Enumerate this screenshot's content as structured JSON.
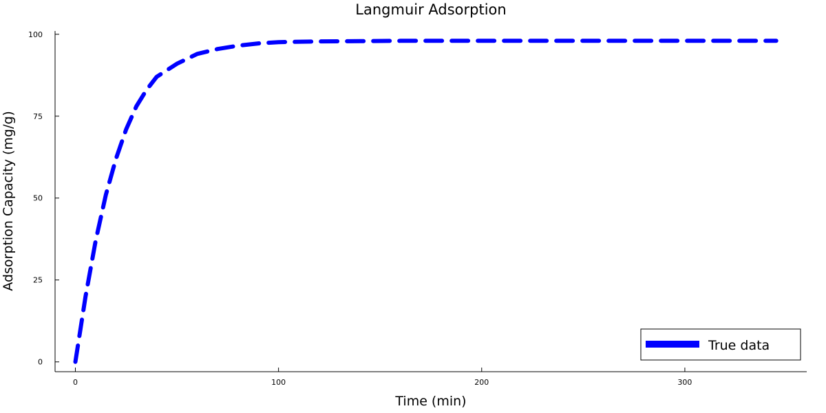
{
  "chart_data": {
    "type": "line",
    "title": "Langmuir Adsorption",
    "xlabel": "Time (min)",
    "ylabel": "Adsorption Capacity (mg/g)",
    "xlim": [
      -10,
      360
    ],
    "ylim": [
      -3,
      101
    ],
    "xticks": [
      0,
      100,
      200,
      300
    ],
    "yticks": [
      0,
      25,
      50,
      75,
      100
    ],
    "grid": false,
    "legend_position": "bottom-right",
    "series": [
      {
        "name": "True data",
        "color": "#0000ff",
        "line_style": "dashed",
        "x": [
          0,
          5,
          10,
          15,
          20,
          25,
          30,
          35,
          40,
          50,
          60,
          70,
          80,
          90,
          100,
          120,
          140,
          160,
          180,
          200,
          250,
          300,
          345
        ],
        "y": [
          0,
          20,
          37,
          51,
          62,
          71,
          78,
          83,
          87,
          91,
          94,
          95.5,
          96.5,
          97.2,
          97.6,
          97.8,
          97.9,
          98,
          98,
          98,
          98,
          98,
          98
        ]
      }
    ]
  }
}
